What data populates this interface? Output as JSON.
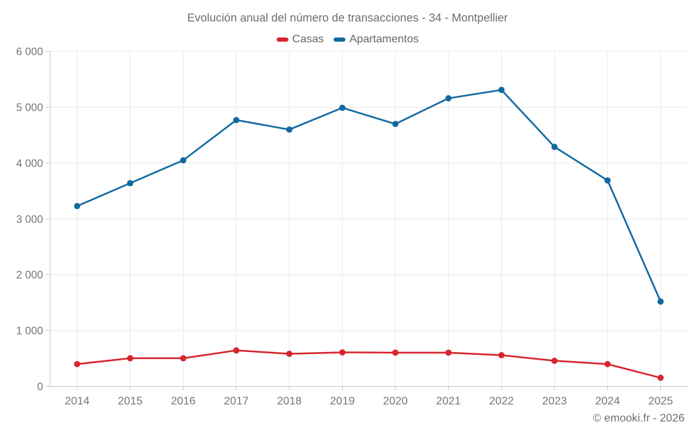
{
  "attribution": "© emooki.fr - 2026",
  "colors": {
    "casas": "#d7262c",
    "apartamentos": "#1269a2",
    "gridline": "#e9e9e9",
    "axis_line": "#c9c9c9",
    "axis_label": "#757575",
    "title_text": "#6d6d6d"
  },
  "chart_data": {
    "type": "line",
    "title": "Evolución anual del número de transacciones - 34 - Montpellier",
    "categories": [
      "2014",
      "2015",
      "2016",
      "2017",
      "2018",
      "2019",
      "2020",
      "2021",
      "2022",
      "2023",
      "2024",
      "2025"
    ],
    "series": [
      {
        "name": "Casas",
        "color": "#d7262c",
        "values": [
          400,
          505,
          505,
          645,
          585,
          610,
          605,
          605,
          560,
          460,
          400,
          155
        ]
      },
      {
        "name": "Apartamentos",
        "color": "#1269a2",
        "values": [
          3230,
          3640,
          4050,
          4770,
          4600,
          4990,
          4700,
          5160,
          5310,
          4290,
          3690,
          1520
        ]
      }
    ],
    "xlabel": "",
    "ylabel": "",
    "ylim": [
      0,
      6000
    ],
    "yticks": [
      {
        "value": 0,
        "label": "0"
      },
      {
        "value": 1000,
        "label": "1 000"
      },
      {
        "value": 2000,
        "label": "2 000"
      },
      {
        "value": 3000,
        "label": "3 000"
      },
      {
        "value": 4000,
        "label": "4 000"
      },
      {
        "value": 5000,
        "label": "5 000"
      },
      {
        "value": 6000,
        "label": "6 000"
      }
    ],
    "grid": true,
    "legend_position": "top"
  }
}
